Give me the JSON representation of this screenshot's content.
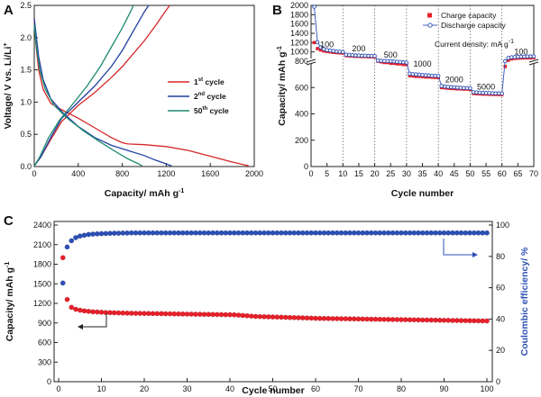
{
  "chart_data": [
    {
      "panel_label": "A",
      "type": "line",
      "xlabel": "Capacity/ mAh g",
      "xlabel_sup": "-1",
      "ylabel": "Voltage/ V vs. Li/Li",
      "ylabel_sup": "+",
      "xlim": [
        0,
        2000
      ],
      "ylim": [
        0,
        2.5
      ],
      "xticks": [
        0,
        400,
        800,
        1200,
        1600,
        2000
      ],
      "yticks": [
        0.0,
        0.5,
        1.0,
        1.5,
        2.0,
        2.5
      ],
      "legend_position": "center-right",
      "series": [
        {
          "name": "1",
          "name_sup": "st",
          "name_rest": " cycle",
          "color": "#d62728",
          "discharge": [
            [
              0,
              2.3
            ],
            [
              15,
              1.9
            ],
            [
              40,
              1.5
            ],
            [
              80,
              1.2
            ],
            [
              150,
              0.98
            ],
            [
              250,
              0.88
            ],
            [
              400,
              0.75
            ],
            [
              550,
              0.6
            ],
            [
              700,
              0.45
            ],
            [
              800,
              0.37
            ],
            [
              850,
              0.35
            ],
            [
              1000,
              0.34
            ],
            [
              1200,
              0.31
            ],
            [
              1400,
              0.25
            ],
            [
              1600,
              0.16
            ],
            [
              1800,
              0.07
            ],
            [
              1950,
              0.01
            ]
          ],
          "charge": [
            [
              0,
              0.01
            ],
            [
              60,
              0.15
            ],
            [
              150,
              0.42
            ],
            [
              250,
              0.7
            ],
            [
              400,
              0.95
            ],
            [
              550,
              1.15
            ],
            [
              700,
              1.38
            ],
            [
              800,
              1.55
            ],
            [
              900,
              1.75
            ],
            [
              1000,
              1.95
            ],
            [
              1100,
              2.18
            ],
            [
              1180,
              2.38
            ],
            [
              1230,
              2.5
            ]
          ]
        },
        {
          "name": "2",
          "name_sup": "nd",
          "name_rest": " cycle",
          "color": "#1f3fa0",
          "discharge": [
            [
              0,
              2.3
            ],
            [
              20,
              2.0
            ],
            [
              40,
              1.7
            ],
            [
              80,
              1.35
            ],
            [
              150,
              1.05
            ],
            [
              250,
              0.85
            ],
            [
              400,
              0.62
            ],
            [
              550,
              0.45
            ],
            [
              700,
              0.33
            ],
            [
              850,
              0.25
            ],
            [
              1000,
              0.17
            ],
            [
              1100,
              0.1
            ],
            [
              1200,
              0.04
            ],
            [
              1250,
              0.01
            ]
          ],
          "charge": [
            [
              0,
              0.01
            ],
            [
              60,
              0.15
            ],
            [
              150,
              0.45
            ],
            [
              250,
              0.75
            ],
            [
              400,
              1.0
            ],
            [
              550,
              1.25
            ],
            [
              700,
              1.55
            ],
            [
              800,
              1.8
            ],
            [
              900,
              2.1
            ],
            [
              1000,
              2.4
            ],
            [
              1040,
              2.5
            ]
          ]
        },
        {
          "name": "50",
          "name_sup": "th",
          "name_rest": " cycle",
          "color": "#1f8a70",
          "discharge": [
            [
              0,
              2.2
            ],
            [
              20,
              1.85
            ],
            [
              50,
              1.5
            ],
            [
              100,
              1.2
            ],
            [
              180,
              0.95
            ],
            [
              300,
              0.75
            ],
            [
              450,
              0.55
            ],
            [
              600,
              0.38
            ],
            [
              750,
              0.22
            ],
            [
              850,
              0.12
            ],
            [
              950,
              0.04
            ],
            [
              980,
              0.01
            ]
          ],
          "charge": [
            [
              0,
              0.01
            ],
            [
              50,
              0.15
            ],
            [
              130,
              0.45
            ],
            [
              230,
              0.72
            ],
            [
              350,
              0.97
            ],
            [
              480,
              1.25
            ],
            [
              600,
              1.55
            ],
            [
              700,
              1.85
            ],
            [
              800,
              2.15
            ],
            [
              880,
              2.42
            ],
            [
              900,
              2.5
            ]
          ]
        }
      ]
    },
    {
      "panel_label": "B",
      "type": "scatter",
      "xlabel": "Cycle number",
      "ylabel": "Capacity/ mAh g",
      "ylabel_sup": "-1",
      "xlim": [
        0,
        70
      ],
      "ylim": [
        0,
        2000
      ],
      "yaxis_break": true,
      "xticks": [
        0,
        5,
        10,
        15,
        20,
        25,
        30,
        35,
        40,
        45,
        50,
        55,
        60,
        65,
        70
      ],
      "yticks": [
        0,
        200,
        400,
        600,
        800,
        1000,
        1200,
        1400,
        1600,
        1800,
        2000
      ],
      "legend_position": "top-right",
      "annotation": "Current density: mA g",
      "annotation_sup": "-1",
      "rate_labels": [
        {
          "text": "100",
          "x": 5,
          "y": 1100
        },
        {
          "text": "200",
          "x": 15,
          "y": 1010
        },
        {
          "text": "500",
          "x": 25,
          "y": 880
        },
        {
          "text": "1000",
          "x": 35,
          "y": 760
        },
        {
          "text": "2000",
          "x": 45,
          "y": 640
        },
        {
          "text": "5000",
          "x": 55,
          "y": 585
        },
        {
          "text": "100",
          "x": 66,
          "y": 950
        }
      ],
      "dividers": [
        10,
        20,
        30,
        40,
        50,
        60
      ],
      "series": [
        {
          "name": "Charge capacity",
          "marker": "square",
          "color": "#e8202a",
          "x": [
            1,
            2,
            3,
            4,
            5,
            6,
            7,
            8,
            9,
            10,
            11,
            12,
            13,
            14,
            15,
            16,
            17,
            18,
            19,
            20,
            21,
            22,
            23,
            24,
            25,
            26,
            27,
            28,
            29,
            30,
            31,
            32,
            33,
            34,
            35,
            36,
            37,
            38,
            39,
            40,
            41,
            42,
            43,
            44,
            45,
            46,
            47,
            48,
            49,
            50,
            51,
            52,
            53,
            54,
            55,
            56,
            57,
            58,
            59,
            60,
            61,
            62,
            63,
            64,
            65,
            66,
            67,
            68,
            69,
            70
          ],
          "y": [
            1200,
            1070,
            1040,
            1020,
            1010,
            1000,
            990,
            985,
            980,
            975,
            920,
            915,
            910,
            905,
            905,
            900,
            900,
            895,
            895,
            890,
            800,
            795,
            790,
            790,
            785,
            785,
            780,
            780,
            775,
            775,
            690,
            688,
            685,
            685,
            683,
            680,
            680,
            678,
            677,
            675,
            600,
            598,
            595,
            593,
            592,
            590,
            590,
            588,
            588,
            585,
            555,
            553,
            552,
            550,
            550,
            549,
            548,
            548,
            547,
            547,
            760,
            820,
            850,
            860,
            865,
            868,
            870,
            872,
            873,
            875
          ]
        },
        {
          "name": "Discharge capacity",
          "marker": "circle-open",
          "color": "#2c4fb5",
          "x": [
            1,
            2,
            3,
            4,
            5,
            6,
            7,
            8,
            9,
            10,
            11,
            12,
            13,
            14,
            15,
            16,
            17,
            18,
            19,
            20,
            21,
            22,
            23,
            24,
            25,
            26,
            27,
            28,
            29,
            30,
            31,
            32,
            33,
            34,
            35,
            36,
            37,
            38,
            39,
            40,
            41,
            42,
            43,
            44,
            45,
            46,
            47,
            48,
            49,
            50,
            51,
            52,
            53,
            54,
            55,
            56,
            57,
            58,
            59,
            60,
            61,
            62,
            63,
            64,
            65,
            66,
            67,
            68,
            69,
            70
          ],
          "y": [
            1970,
            1210,
            1100,
            1060,
            1040,
            1030,
            1020,
            1010,
            1005,
            1000,
            940,
            935,
            930,
            925,
            923,
            920,
            918,
            915,
            914,
            912,
            815,
            810,
            806,
            803,
            800,
            798,
            796,
            794,
            792,
            790,
            705,
            702,
            700,
            698,
            696,
            694,
            692,
            690,
            689,
            688,
            612,
            608,
            605,
            603,
            602,
            600,
            598,
            597,
            596,
            595,
            565,
            563,
            561,
            560,
            559,
            558,
            557,
            556,
            556,
            555,
            800,
            870,
            885,
            890,
            895,
            898,
            900,
            902,
            903,
            905
          ]
        }
      ]
    },
    {
      "panel_label": "C",
      "type": "scatter",
      "xlabel": "Cycle number",
      "ylabel": "Capacity/ mAh g",
      "ylabel_sup": "-1",
      "y2label": "Coulombic efficiency/ %",
      "xlim": [
        0,
        100
      ],
      "ylim": [
        0,
        2400
      ],
      "y2lim": [
        0,
        100
      ],
      "xticks": [
        0,
        10,
        20,
        30,
        40,
        50,
        60,
        70,
        80,
        90,
        100
      ],
      "yticks": [
        0,
        300,
        600,
        900,
        1200,
        1500,
        1800,
        2100,
        2400
      ],
      "y2ticks": [
        0,
        20,
        40,
        60,
        80,
        100
      ],
      "series": [
        {
          "name": "Capacity",
          "axis": "left",
          "color": "#e8202a",
          "x_start": 1,
          "x_end": 100,
          "y": [
            1900,
            1260,
            1140,
            1110,
            1095,
            1085,
            1078,
            1072,
            1068,
            1064,
            1060,
            1058,
            1056,
            1054,
            1052,
            1050,
            1049,
            1048,
            1047,
            1046,
            1045,
            1044,
            1043,
            1042,
            1041,
            1040,
            1039,
            1038,
            1037,
            1036,
            1035,
            1034,
            1033,
            1032,
            1031,
            1030,
            1029,
            1028,
            1027,
            1026,
            1025,
            1020,
            1015,
            1010,
            1005,
            1000,
            998,
            996,
            994,
            992,
            990,
            988,
            986,
            984,
            982,
            980,
            978,
            976,
            974,
            972,
            970,
            969,
            968,
            967,
            966,
            965,
            964,
            963,
            962,
            961,
            960,
            959,
            958,
            957,
            956,
            955,
            954,
            953,
            952,
            951,
            950,
            949,
            948,
            947,
            946,
            945,
            944,
            943,
            942,
            941,
            940,
            939,
            938,
            937,
            936,
            935,
            934,
            933,
            932,
            931
          ]
        },
        {
          "name": "Coulombic efficiency",
          "axis": "right",
          "color": "#2c4fb5",
          "x_start": 1,
          "x_end": 100,
          "y": [
            63,
            86,
            90,
            92,
            93,
            93.5,
            94,
            94.2,
            94.4,
            94.5,
            94.6,
            94.7,
            94.8,
            94.8,
            94.9,
            94.9,
            95,
            95,
            95,
            95,
            95,
            95,
            95,
            95,
            95,
            95,
            95,
            95,
            95,
            95,
            95,
            95,
            95,
            95,
            95,
            95,
            95,
            95,
            95,
            95,
            95,
            95,
            95,
            95,
            95,
            95,
            95,
            95,
            95,
            95,
            95,
            95,
            95,
            95,
            95,
            95,
            95,
            95,
            95,
            95,
            95,
            95,
            95,
            95,
            95,
            95,
            95,
            95,
            95,
            95,
            95,
            95,
            95,
            95,
            95,
            95,
            95,
            95,
            95,
            95,
            95,
            95,
            95,
            95,
            95,
            95,
            95,
            95,
            95,
            95,
            95,
            95,
            95,
            95,
            95,
            95,
            95,
            95,
            95,
            95
          ]
        }
      ]
    }
  ]
}
